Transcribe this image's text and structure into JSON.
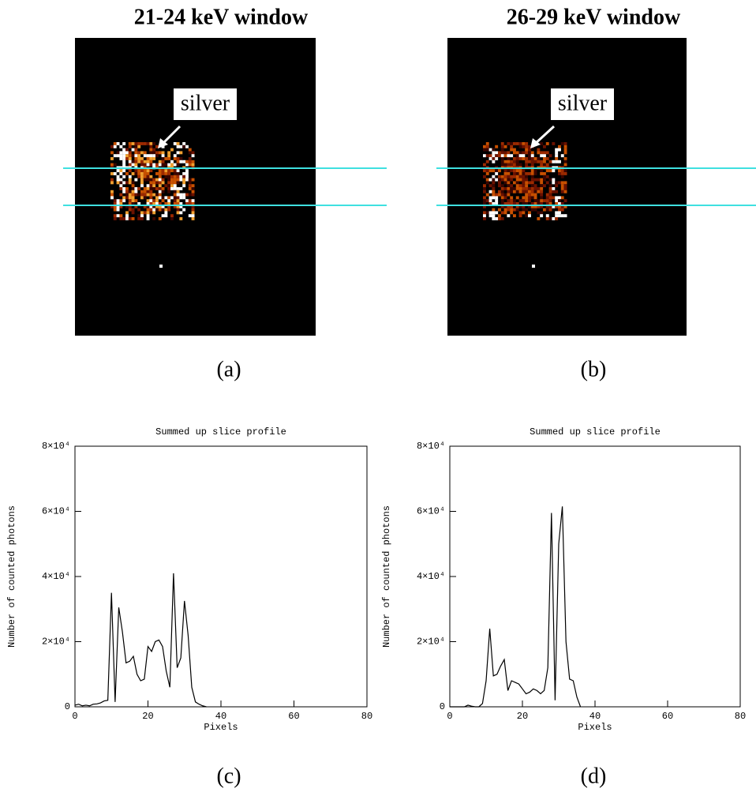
{
  "images": [
    {
      "title": "21-24 keV window",
      "annotation": "silver",
      "label": "(a)"
    },
    {
      "title": "26-29 keV window",
      "annotation": "silver",
      "label": "(b)"
    }
  ],
  "chart_data": [
    {
      "type": "line",
      "title": "Summed up slice profile",
      "x_label": "Pixels",
      "y_label": "Number of counted photons",
      "label": "(c)",
      "color": "#000000",
      "x": [
        0,
        1,
        2,
        3,
        4,
        5,
        6,
        7,
        8,
        9,
        10,
        11,
        12,
        13,
        14,
        15,
        16,
        17,
        18,
        19,
        20,
        21,
        22,
        23,
        24,
        25,
        26,
        27,
        28,
        29,
        30,
        31,
        32,
        33,
        34,
        35,
        36
      ],
      "values": [
        500,
        800,
        300,
        500,
        300,
        800,
        900,
        1200,
        1800,
        2000,
        35000,
        1500,
        30500,
        23000,
        13500,
        14000,
        15500,
        10000,
        8000,
        8500,
        18500,
        17000,
        20000,
        20500,
        18500,
        11000,
        6000,
        41000,
        12000,
        15000,
        32500,
        22000,
        6000,
        1500,
        800,
        300,
        0
      ],
      "xlim": [
        0,
        80
      ],
      "xticks": [
        0,
        20,
        40,
        60,
        80
      ],
      "ylim": [
        0,
        80000
      ],
      "yticks": [
        0,
        {
          "value": 20000,
          "label": "2×10⁴"
        },
        {
          "value": 40000,
          "label": "4×10⁴"
        },
        {
          "value": 60000,
          "label": "6×10⁴"
        },
        {
          "value": 80000,
          "label": "8×10⁴"
        }
      ]
    },
    {
      "type": "line",
      "title": "Summed up slice profile",
      "x_label": "Pixels",
      "y_label": "Number of counted photons",
      "label": "(d)",
      "color": "#000000",
      "x": [
        0,
        1,
        2,
        3,
        4,
        5,
        6,
        7,
        8,
        9,
        10,
        11,
        12,
        13,
        14,
        15,
        16,
        17,
        18,
        19,
        20,
        21,
        22,
        23,
        24,
        25,
        26,
        27,
        28,
        29,
        30,
        31,
        32,
        33,
        34,
        35,
        36
      ],
      "values": [
        0,
        0,
        0,
        0,
        0,
        500,
        200,
        0,
        0,
        1000,
        8000,
        24000,
        9500,
        10000,
        12500,
        14500,
        5000,
        8000,
        7500,
        7000,
        5500,
        4000,
        4500,
        5500,
        5000,
        4000,
        5000,
        12000,
        59500,
        2000,
        50000,
        61500,
        20000,
        8500,
        8000,
        3000,
        0
      ],
      "xlim": [
        0,
        80
      ],
      "xticks": [
        0,
        20,
        40,
        60,
        80
      ],
      "ylim": [
        0,
        80000
      ],
      "yticks": [
        0,
        {
          "value": 20000,
          "label": "2×10⁴"
        },
        {
          "value": 40000,
          "label": "4×10⁴"
        },
        {
          "value": 60000,
          "label": "6×10⁴"
        },
        {
          "value": 80000,
          "label": "8×10⁴"
        }
      ]
    }
  ]
}
